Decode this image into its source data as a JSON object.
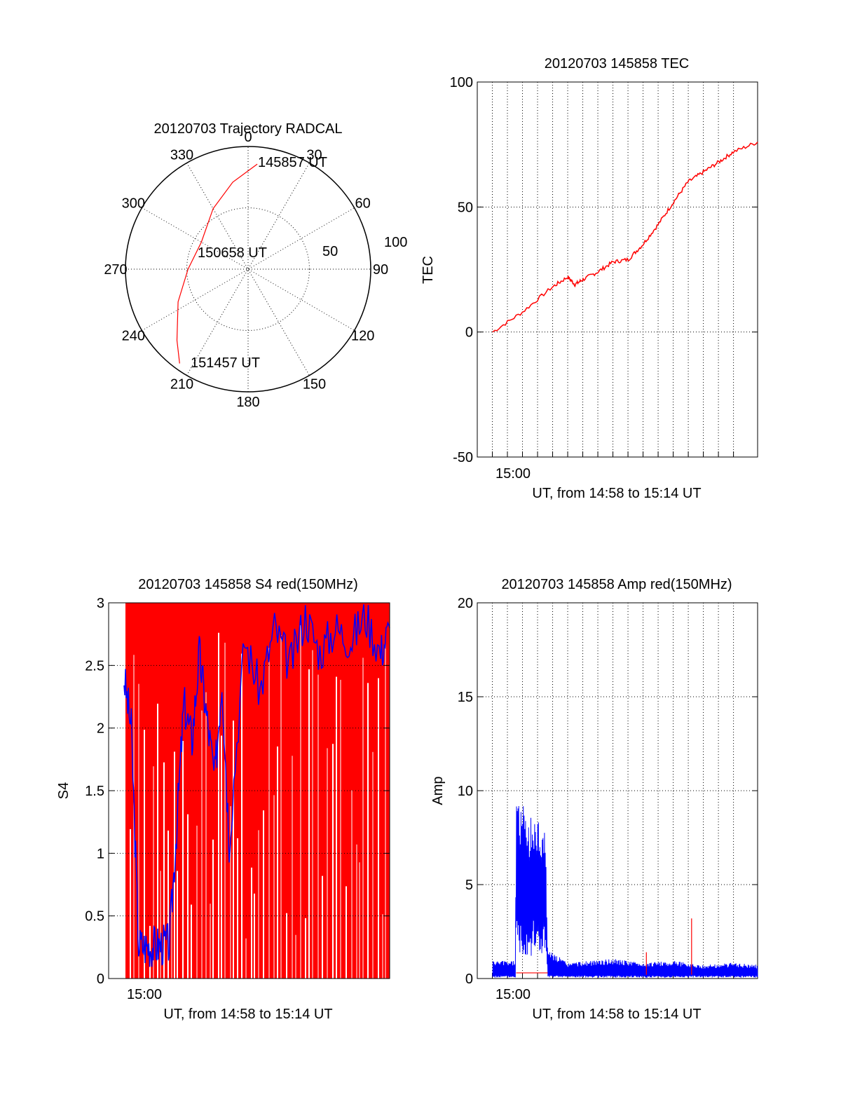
{
  "chart_data": [
    {
      "type": "polar",
      "title": "20120703 Trajectory RADCAL",
      "angle_labels": [
        "0",
        "30",
        "60",
        "90",
        "120",
        "150",
        "180",
        "210",
        "240",
        "270",
        "300",
        "330"
      ],
      "radius_labels": [
        "50",
        "100"
      ],
      "series": [
        {
          "color": "#ff0000",
          "points": [
            {
              "az": 5,
              "zen": 86
            },
            {
              "az": 350,
              "zen": 72
            },
            {
              "az": 330,
              "zen": 57
            },
            {
              "az": 300,
              "zen": 44
            },
            {
              "az": 270,
              "zen": 49
            },
            {
              "az": 245,
              "zen": 63
            },
            {
              "az": 225,
              "zen": 82
            },
            {
              "az": 216,
              "zen": 95
            }
          ]
        }
      ],
      "annotations": [
        {
          "text": "145857 UT",
          "az": 5,
          "zen": 86
        },
        {
          "text": "150658 UT",
          "az": 300,
          "zen": 44
        },
        {
          "text": "151457 UT",
          "az": 216,
          "zen": 95
        }
      ]
    },
    {
      "type": "line",
      "title": "20120703 145858 TEC",
      "xlabel": "UT, from 14:58 to 15:14 UT",
      "ylabel": "TEC",
      "xlim": [
        14.95,
        15.26
      ],
      "ylim": [
        -50,
        100
      ],
      "yticks": [
        -50,
        0,
        50,
        100
      ],
      "xtick_labels": [
        {
          "x": 15.0,
          "label": "15:00"
        }
      ],
      "series": [
        {
          "color": "#ff0000",
          "x": [
            14.967,
            15.0,
            15.033,
            15.05,
            15.058,
            15.067,
            15.083,
            15.1,
            15.117,
            15.133,
            15.15,
            15.167,
            15.183,
            15.2,
            15.217,
            15.233,
            15.26
          ],
          "y": [
            0,
            8,
            18,
            22,
            19,
            21,
            24,
            28,
            29,
            35,
            43,
            52,
            60,
            64,
            68,
            72,
            76
          ]
        }
      ]
    },
    {
      "type": "line",
      "title": "20120703 145858 S4 red(150MHz)",
      "xlabel": "UT, from 14:58 to 15:14 UT",
      "ylabel": "S4",
      "xlim": [
        14.95,
        15.26
      ],
      "ylim": [
        0,
        3
      ],
      "yticks": [
        0,
        0.5,
        1,
        1.5,
        2,
        2.5,
        3
      ],
      "xtick_labels": [
        {
          "x": 15.0,
          "label": "15:00"
        }
      ],
      "series": [
        {
          "color": "#0000ff",
          "x": [
            14.967,
            14.975,
            14.983,
            14.992,
            15.0,
            15.008,
            15.017,
            15.025,
            15.033,
            15.042,
            15.05,
            15.058,
            15.067,
            15.075,
            15.083,
            15.1,
            15.117,
            15.133,
            15.15,
            15.167,
            15.183,
            15.2,
            15.217,
            15.233,
            15.25,
            15.26
          ],
          "y": [
            2.4,
            2.0,
            0.27,
            0.26,
            0.26,
            0.27,
            0.28,
            1.2,
            2.2,
            1.9,
            2.6,
            2.1,
            1.6,
            2.4,
            1.1,
            2.7,
            2.3,
            2.8,
            2.5,
            2.9,
            2.6,
            2.8,
            2.7,
            2.9,
            2.6,
            2.8
          ]
        },
        {
          "color": "#ff0000",
          "x": [
            14.967,
            15.26
          ],
          "y": [
            0,
            3
          ]
        }
      ]
    },
    {
      "type": "line",
      "title": "20120703 145858 Amp red(150MHz)",
      "xlabel": "UT, from 14:58 to 15:14 UT",
      "ylabel": "Amp",
      "xlim": [
        14.95,
        15.26
      ],
      "ylim": [
        0,
        20
      ],
      "yticks": [
        0,
        5,
        10,
        15,
        20
      ],
      "xtick_labels": [
        {
          "x": 15.0,
          "label": "15:00"
        }
      ],
      "series": [
        {
          "color": "#0000ff",
          "x": [
            14.967,
            14.992,
            14.993,
            15.0,
            15.017,
            15.025,
            15.028,
            15.05,
            15.1,
            15.133,
            15.167,
            15.2,
            15.233,
            15.26
          ],
          "y": [
            0.9,
            0.9,
            9.5,
            8.8,
            8.2,
            8.0,
            1.5,
            0.8,
            1.0,
            0.8,
            0.9,
            0.7,
            0.8,
            0.7
          ]
        },
        {
          "color": "#ff0000",
          "x": [
            14.993,
            15.028,
            15.137,
            15.187
          ],
          "y": [
            0.3,
            0.3,
            1.4,
            3.2
          ]
        }
      ]
    }
  ]
}
